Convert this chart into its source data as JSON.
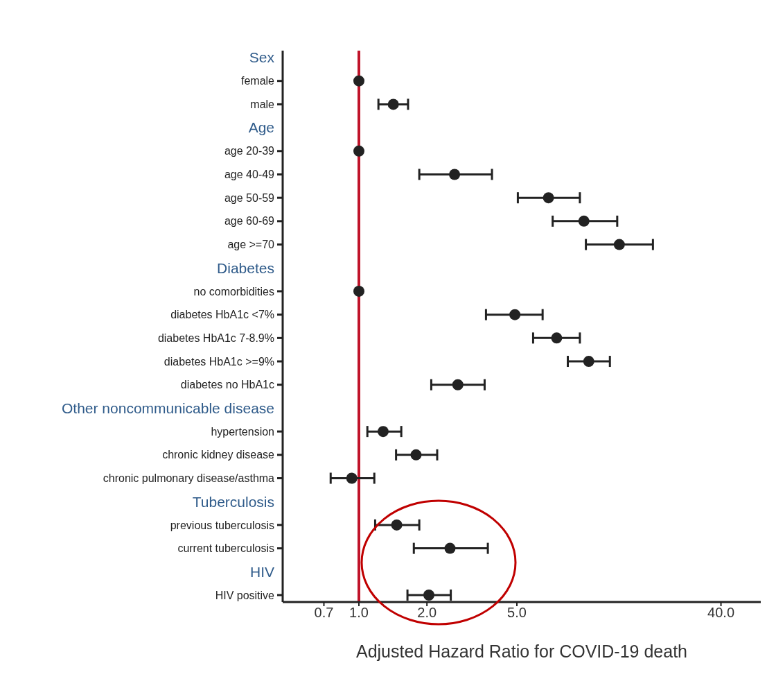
{
  "chart_data": {
    "type": "scatter",
    "orientation": "horizontal",
    "xlabel": "Adjusted Hazard Ratio for COVID-19 death",
    "categories": [
      "Sex",
      "female",
      "male",
      "Age",
      "age 20-39",
      "age 40-49",
      "age 50-59",
      "age 60-69",
      "age >=70",
      "Diabetes",
      "no comorbidities",
      "diabetes HbA1c <7%",
      "diabetes HbA1c 7-8.9%",
      "diabetes HbA1c >=9%",
      "diabetes no HbA1c",
      "Other noncommunicable disease",
      "hypertension",
      "chronic kidney disease",
      "chronic pulmonary disease/asthma",
      "Tuberculosis",
      "previous tuberculosis",
      "current tuberculosis",
      "HIV",
      "HIV positive"
    ],
    "values": [
      null,
      1,
      1.42,
      null,
      1,
      2.65,
      6.9,
      9.9,
      14.2,
      null,
      1,
      4.9,
      7.5,
      10.4,
      2.74,
      null,
      1.28,
      1.79,
      0.93,
      null,
      1.47,
      2.53,
      null,
      2.04
    ],
    "errors": [
      null,
      null,
      [
        1.22,
        1.65
      ],
      null,
      null,
      [
        1.85,
        3.88
      ],
      [
        5.05,
        9.5
      ],
      [
        7.2,
        13.9
      ],
      [
        10.1,
        20
      ],
      null,
      null,
      [
        3.65,
        6.5
      ],
      [
        5.9,
        9.5
      ],
      [
        8.4,
        12.9
      ],
      [
        2.09,
        3.6
      ],
      null,
      [
        1.09,
        1.54
      ],
      [
        1.46,
        2.22
      ],
      [
        0.75,
        1.17
      ],
      null,
      [
        1.18,
        1.85
      ],
      [
        1.75,
        3.72
      ],
      null,
      [
        1.64,
        2.55
      ]
    ],
    "color": "#222222",
    "marker": "circle",
    "log": "x",
    "xlim": [
      0.46,
      60
    ],
    "xticks": [
      0.7,
      {
        "value": 1,
        "label": "1.0"
      },
      {
        "value": 2,
        "label": "2.0"
      },
      {
        "value": 5,
        "label": "5.0"
      },
      {
        "value": 40,
        "label": "40.0"
      }
    ],
    "ref_lines": [
      {
        "axis": "x",
        "value": 1,
        "color": "#c0142a"
      }
    ]
  }
}
